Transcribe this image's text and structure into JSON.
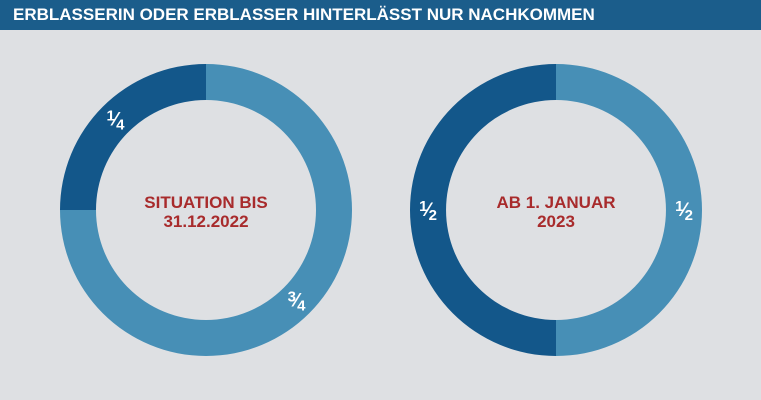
{
  "header": {
    "title": "ERBLASSERIN ODER ERBLASSER HINTERLÄSST NUR NACHKOMMEN"
  },
  "colors": {
    "header_bg": "#1b5d8b",
    "background": "#dee0e3",
    "dark_blue": "#13578a",
    "light_blue": "#478fb6",
    "center_text": "#a82b2c",
    "label_text": "#ffffff"
  },
  "chart_data": [
    {
      "type": "pie",
      "center_label": [
        "SITUATION BIS",
        "31.12.2022"
      ],
      "slices": [
        {
          "value": 0.75,
          "label_num": "3",
          "label_den": "4",
          "color": "#478fb6"
        },
        {
          "value": 0.25,
          "label_num": "1",
          "label_den": "4",
          "color": "#13578a"
        }
      ]
    },
    {
      "type": "pie",
      "center_label": [
        "AB 1. JANUAR",
        "2023"
      ],
      "slices": [
        {
          "value": 0.5,
          "label_num": "1",
          "label_den": "2",
          "color": "#478fb6"
        },
        {
          "value": 0.5,
          "label_num": "1",
          "label_den": "2",
          "color": "#13578a"
        }
      ]
    }
  ]
}
